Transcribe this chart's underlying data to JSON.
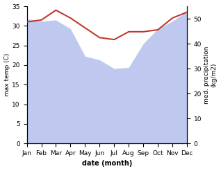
{
  "months": [
    "Jan",
    "Feb",
    "Mar",
    "Apr",
    "May",
    "Jun",
    "Jul",
    "Aug",
    "Sep",
    "Oct",
    "Nov",
    "Dec"
  ],
  "month_indices": [
    0,
    1,
    2,
    3,
    4,
    5,
    6,
    7,
    8,
    9,
    10,
    11
  ],
  "temperature": [
    31.0,
    31.5,
    34.0,
    32.0,
    29.5,
    27.0,
    26.5,
    28.5,
    28.5,
    29.0,
    32.0,
    33.5
  ],
  "precipitation_right": [
    50,
    49,
    49.5,
    46,
    35,
    33.5,
    30,
    30.5,
    40,
    46,
    49,
    53
  ],
  "temp_color": "#c0392b",
  "precip_color": "#b8c4ee",
  "ylim_left": [
    0,
    35
  ],
  "ylim_right": [
    0,
    55
  ],
  "yticks_left": [
    0,
    5,
    10,
    15,
    20,
    25,
    30,
    35
  ],
  "yticks_right": [
    0,
    10,
    20,
    30,
    40,
    50
  ],
  "ylabel_left": "max temp (C)",
  "ylabel_right": "med. precipitation\n(kg/m2)",
  "xlabel": "date (month)",
  "background_color": "#ffffff",
  "fig_width": 3.18,
  "fig_height": 2.47,
  "dpi": 100
}
